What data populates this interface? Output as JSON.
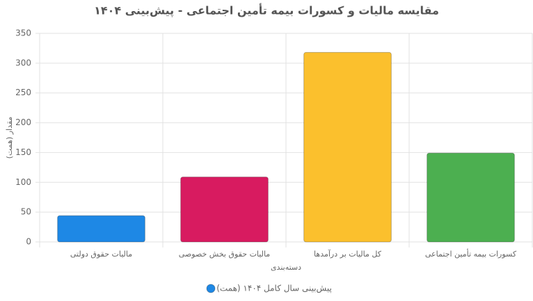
{
  "chart_data": {
    "type": "bar",
    "title": "مقایسه مالیات و کسورات بیمه تأمین اجتماعی - پیش‌بینی ۱۴۰۴",
    "x_label": "دسته‌بندی",
    "y_label": "مقدار (همت)",
    "categories": [
      "مالیات حقوق دولتی",
      "مالیات حقوق بخش خصوصی",
      "کل مالیات بر درآمدها",
      "کسورات بیمه تأمین اجتماعی"
    ],
    "series": [
      {
        "name": "پیش‌بینی سال کامل ۱۴۰۴ (همت)",
        "color": "#1e88e5",
        "colors": [
          "#1e88e5",
          "#d81b60",
          "#fbc02d",
          "#4caf50"
        ],
        "values": [
          44,
          109,
          318,
          149
        ]
      }
    ],
    "ylim": [
      0,
      350
    ],
    "yticks": [
      0,
      50,
      100,
      150,
      200,
      250,
      300,
      350
    ],
    "grid": true
  }
}
